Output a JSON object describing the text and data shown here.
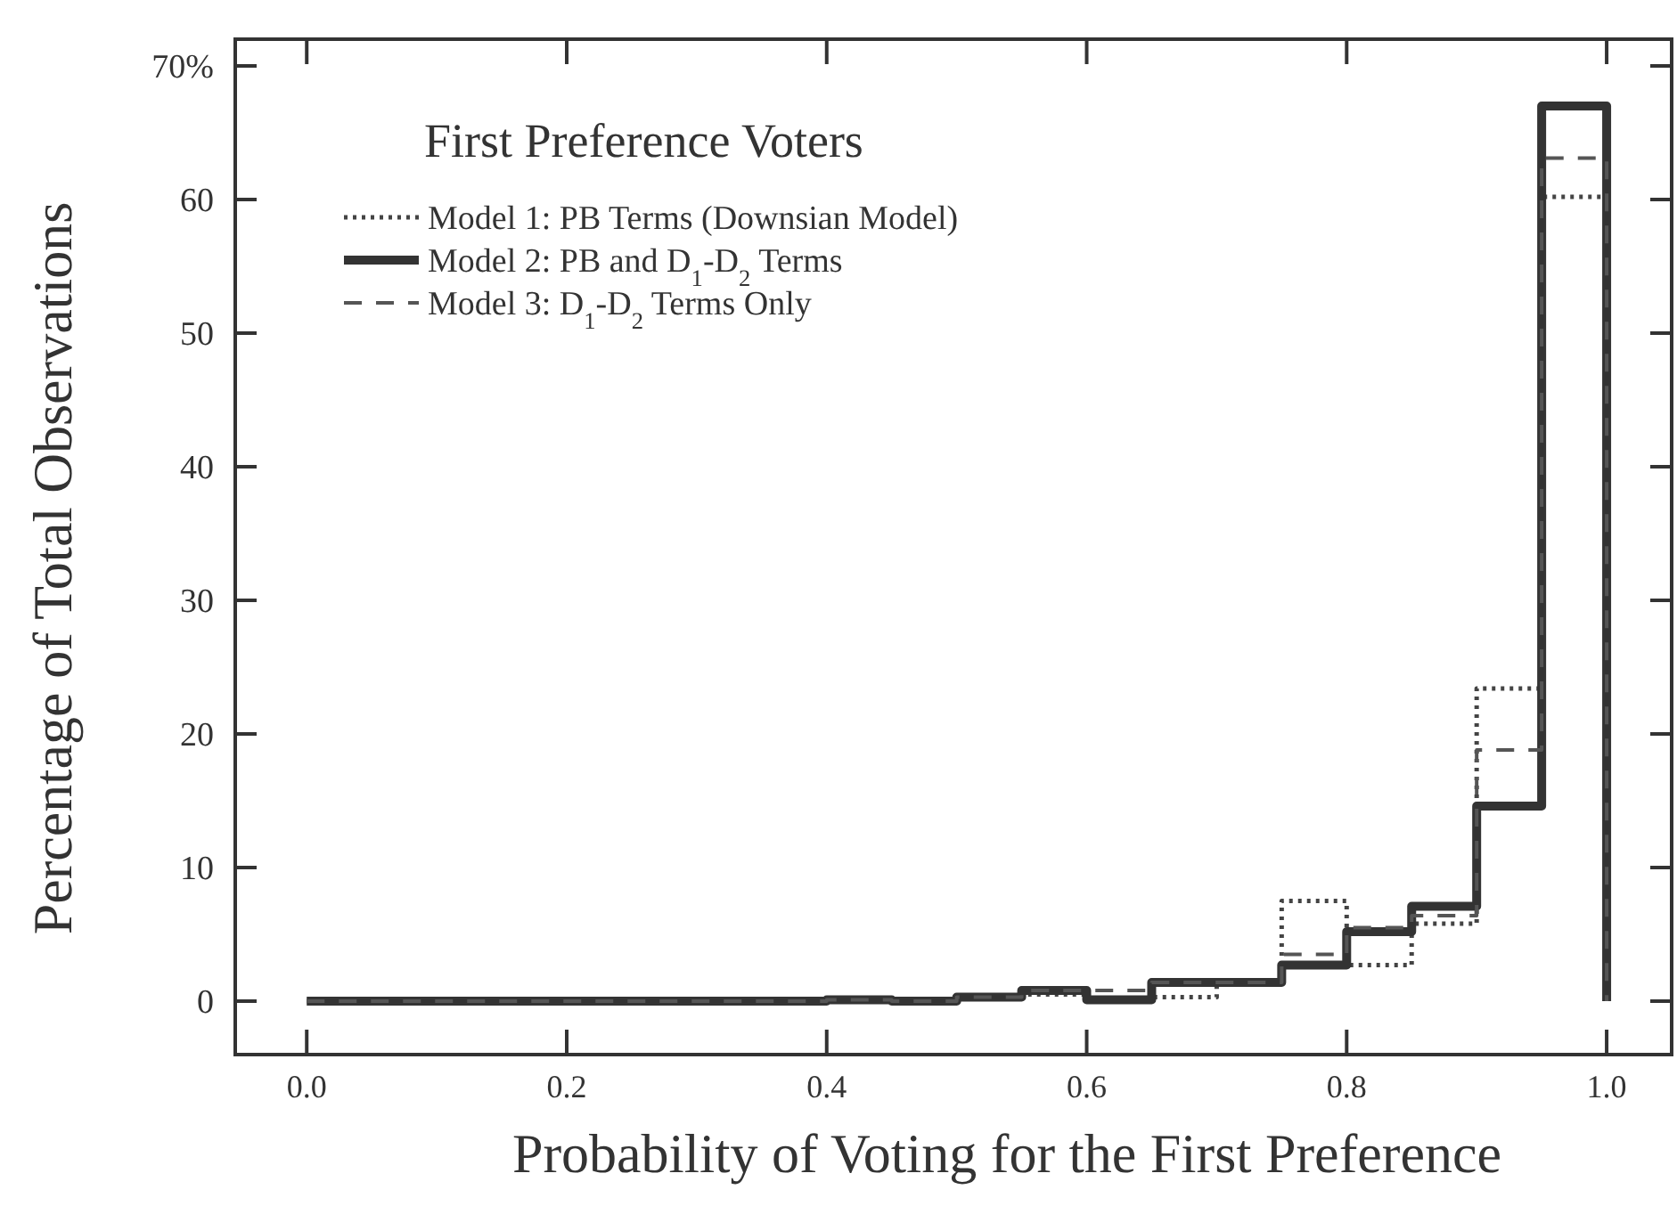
{
  "chart_data": {
    "type": "histogram",
    "title": "First Preference Voters",
    "xlabel": "Probability of Voting for the First Preference",
    "ylabel": "Percentage of Total Observations",
    "bins": [
      0,
      0.05,
      0.1,
      0.15,
      0.2,
      0.25,
      0.3,
      0.35,
      0.4,
      0.45,
      0.5,
      0.55,
      0.6,
      0.65,
      0.7,
      0.75,
      0.8,
      0.85,
      0.9,
      0.95,
      1.0
    ],
    "series": [
      {
        "name": "Model 1: PB Terms (Downsian Model)",
        "color": "#444444",
        "line_style": "dotted",
        "values": [
          0,
          0,
          0,
          0,
          0,
          0,
          0,
          0,
          0.1,
          0,
          0.3,
          0.5,
          0.1,
          0.3,
          1.4,
          7.5,
          2.7,
          5.8,
          23.4,
          60.2
        ]
      },
      {
        "name": "Model 2: PB and D$_{1}$-D$_{2}$ Terms",
        "color": "#333333",
        "line_style": "solid",
        "values": [
          0,
          0,
          0,
          0,
          0,
          0,
          0,
          0,
          0.1,
          0,
          0.3,
          0.8,
          0.1,
          1.4,
          1.4,
          2.7,
          5.2,
          7.1,
          14.6,
          67
        ]
      },
      {
        "name": "Model 3:  D$_{1}$-D$_{2}$ Terms Only",
        "color": "#555555",
        "line_style": "dashed",
        "values": [
          0,
          0,
          0,
          0,
          0,
          0,
          0,
          0,
          0.1,
          0,
          0.3,
          0.8,
          0.8,
          1.4,
          1.4,
          3.5,
          5.5,
          6.4,
          18.8,
          63.1
        ]
      }
    ],
    "xlim": [
      -0.055,
      1.05
    ],
    "ylim": [
      -4,
      72
    ],
    "xticks": [
      {
        "value": 0,
        "label": "0.0"
      },
      {
        "value": 0.2,
        "label": "0.2"
      },
      {
        "value": 0.4,
        "label": "0.4"
      },
      {
        "value": 0.6,
        "label": "0.6"
      },
      {
        "value": 0.8,
        "label": "0.8"
      },
      {
        "value": 1,
        "label": "1.0"
      }
    ],
    "yticks": [
      0,
      10,
      20,
      30,
      40,
      50,
      60,
      {
        "value": 70,
        "label": "70%"
      }
    ],
    "legend": "top left",
    "grid": false
  }
}
